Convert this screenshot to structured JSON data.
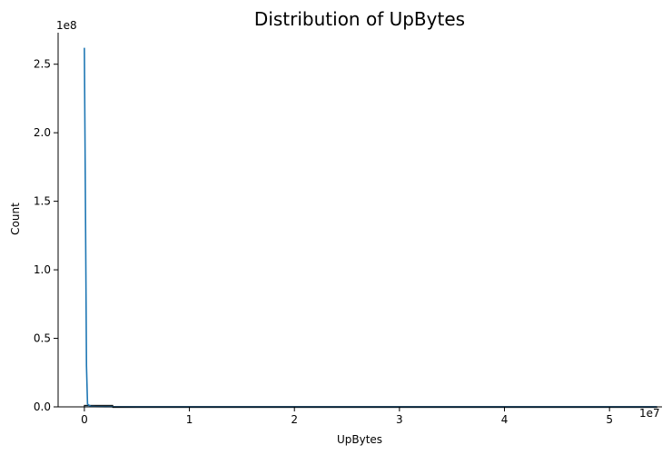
{
  "chart_data": {
    "type": "histogram",
    "title": "Distribution of UpBytes",
    "xlabel": "UpBytes",
    "ylabel": "Count",
    "x_offset_label": "1e7",
    "y_offset_label": "1e8",
    "xlim": [
      -0.25,
      5.5
    ],
    "ylim": [
      0,
      2.73
    ],
    "x_ticks": [
      0,
      1,
      2,
      3,
      4,
      5
    ],
    "y_ticks": [
      0.0,
      0.5,
      1.0,
      1.5,
      2.0,
      2.5
    ],
    "x_tick_labels": [
      "0",
      "1",
      "2",
      "3",
      "4",
      "5"
    ],
    "y_tick_labels": [
      "0.0",
      "0.5",
      "1.0",
      "1.5",
      "2.0",
      "2.5"
    ],
    "bins": [
      {
        "x0": 0.0,
        "x1": 0.27,
        "count": 0.011
      },
      {
        "x0": 0.27,
        "x1": 5.45,
        "count": 0.001
      }
    ],
    "kde_line": {
      "x": [
        0.0,
        0.01,
        0.02,
        0.03,
        0.06,
        0.1,
        0.2,
        0.5,
        1.0,
        2.0,
        3.0,
        4.0,
        5.0,
        5.45
      ],
      "y": [
        2.62,
        1.5,
        0.3,
        0.02,
        0.004,
        0.002,
        0.001,
        0.0005,
        0.0003,
        0.0002,
        0.0001,
        0.0001,
        0.0001,
        0.0001
      ]
    },
    "grid": false,
    "colors": {
      "line": "#1f77b4",
      "bar_fill": "#1f77b4",
      "axis": "#000000"
    }
  }
}
